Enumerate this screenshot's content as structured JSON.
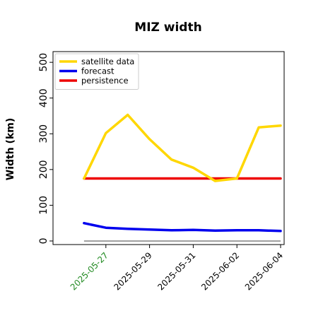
{
  "chart_data": {
    "type": "line",
    "title": "MIZ width",
    "xlabel": "",
    "ylabel": "Width (km)",
    "x": [
      "2025-05-26",
      "2025-05-27",
      "2025-05-28",
      "2025-05-29",
      "2025-05-30",
      "2025-05-31",
      "2025-06-01",
      "2025-06-02",
      "2025-06-03",
      "2025-06-04"
    ],
    "xlim": [
      "2025-05-25",
      "2025-06-04"
    ],
    "ylim": [
      -10,
      530
    ],
    "yticks": [
      0,
      100,
      200,
      300,
      400,
      500
    ],
    "xticks": [
      {
        "date": "2025-05-27",
        "label": "2025-05-27",
        "color": "#228b22"
      },
      {
        "date": "2025-05-29",
        "label": "2025-05-29",
        "color": "#000000"
      },
      {
        "date": "2025-05-31",
        "label": "2025-05-31",
        "color": "#000000"
      },
      {
        "date": "2025-06-02",
        "label": "2025-06-02",
        "color": "#000000"
      },
      {
        "date": "2025-06-04",
        "label": "2025-06-04",
        "color": "#000000"
      }
    ],
    "baseline": {
      "value": 0,
      "color": "#808080"
    },
    "grid": false,
    "legend_position": "top-left",
    "series": [
      {
        "name": "satellite data",
        "color": "#ffd700",
        "values": [
          175,
          302,
          353,
          285,
          228,
          205,
          168,
          175,
          318,
          323
        ]
      },
      {
        "name": "forecast",
        "color": "#0000ee",
        "values": [
          50,
          37,
          34,
          32,
          30,
          31,
          29,
          30,
          30,
          28
        ]
      },
      {
        "name": "persistence",
        "color": "#ee0000",
        "values": [
          175,
          175,
          175,
          175,
          175,
          175,
          175,
          175,
          175,
          175
        ]
      }
    ]
  }
}
